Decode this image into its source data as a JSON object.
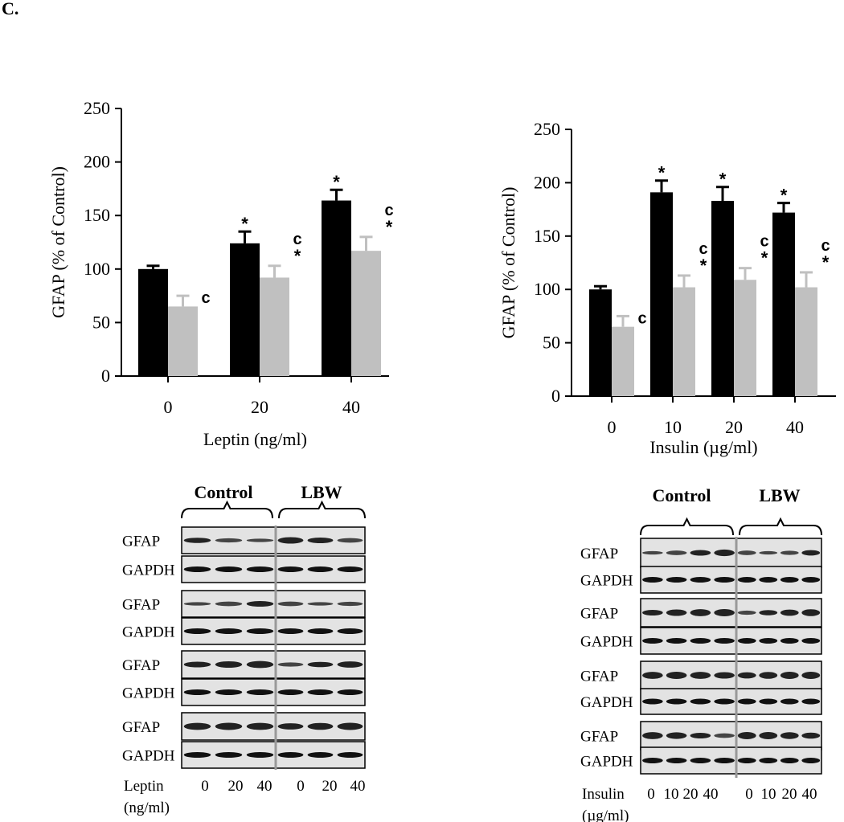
{
  "panel_label": "C.",
  "chart_data": [
    {
      "type": "bar",
      "xlabel": "Leptin (ng/ml)",
      "ylabel": "GFAP (% of Control)",
      "categories": [
        "0",
        "20",
        "40"
      ],
      "ylim": [
        0,
        250
      ],
      "yticks": [
        0,
        50,
        100,
        150,
        200,
        250
      ],
      "series": [
        {
          "color": "#000000",
          "values": [
            100,
            124,
            164
          ],
          "errors": [
            3,
            11,
            10
          ]
        },
        {
          "color": "#c0c0c0",
          "values": [
            65,
            92,
            117
          ],
          "errors": [
            10,
            11,
            13
          ]
        }
      ],
      "annotations": {
        "black": [
          [
            "",
            ""
          ],
          [
            "*",
            ""
          ],
          [
            "*",
            ""
          ]
        ],
        "gray": [
          [
            "c",
            ""
          ],
          [
            "c",
            "*"
          ],
          [
            "c",
            "*"
          ]
        ]
      }
    },
    {
      "type": "bar",
      "xlabel": "Insulin (µg/ml)",
      "ylabel": "GFAP (% of Control)",
      "categories": [
        "0",
        "10",
        "20",
        "40"
      ],
      "ylim": [
        0,
        250
      ],
      "yticks": [
        0,
        50,
        100,
        150,
        200,
        250
      ],
      "series": [
        {
          "color": "#000000",
          "values": [
            100,
            191,
            183,
            172
          ],
          "errors": [
            3,
            11,
            13,
            9
          ]
        },
        {
          "color": "#c0c0c0",
          "values": [
            65,
            102,
            109,
            102
          ],
          "errors": [
            10,
            11,
            11,
            14
          ]
        }
      ],
      "annotations": {
        "black": [
          [
            "",
            ""
          ],
          [
            "*",
            ""
          ],
          [
            "*",
            ""
          ],
          [
            "*",
            ""
          ]
        ],
        "gray": [
          [
            "c",
            ""
          ],
          [
            "c",
            "*"
          ],
          [
            "c",
            "*"
          ],
          [
            "c",
            "*"
          ]
        ]
      }
    }
  ],
  "blots": {
    "left": {
      "group_labels": [
        "Control",
        "LBW"
      ],
      "row_labels": [
        "GFAP",
        "GAPDH"
      ],
      "treatment_label": "Leptin",
      "treatment_unit": "(ng/ml)",
      "lane_labels": [
        "0",
        "20",
        "40",
        "0",
        "20",
        "40"
      ]
    },
    "right": {
      "group_labels": [
        "Control",
        "LBW"
      ],
      "row_labels": [
        "GFAP",
        "GAPDH"
      ],
      "treatment_label": "Insulin",
      "treatment_unit": "(µg/ml)",
      "lane_labels": [
        "0",
        "10",
        "20",
        "40",
        "0",
        "10",
        "20",
        "40"
      ]
    }
  }
}
